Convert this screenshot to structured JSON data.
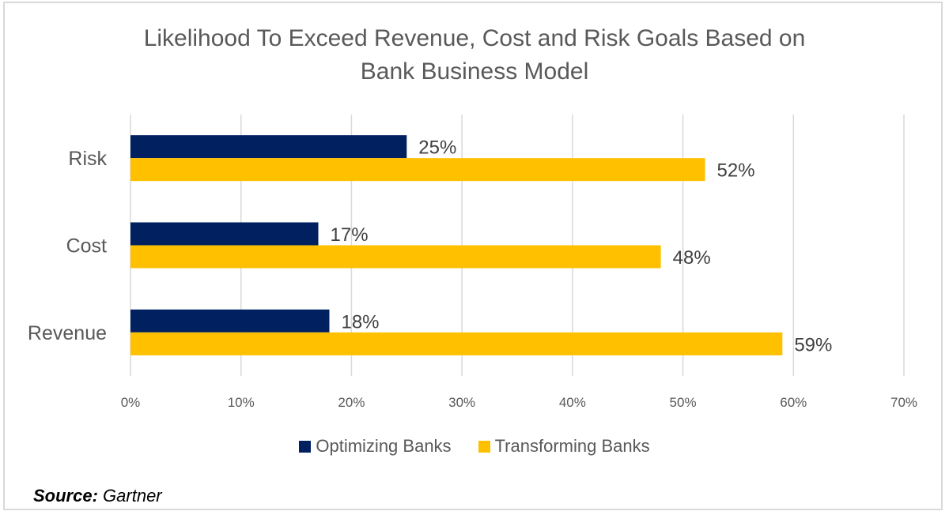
{
  "chart_data": {
    "type": "bar",
    "orientation": "horizontal",
    "title_lines": [
      "Likelihood To Exceed Revenue, Cost and Risk Goals Based on",
      "Bank Business Model"
    ],
    "categories": [
      "Risk",
      "Cost",
      "Revenue"
    ],
    "series": [
      {
        "name": "Optimizing Banks",
        "color": "#002060",
        "values": [
          25,
          17,
          18
        ]
      },
      {
        "name": "Transforming Banks",
        "color": "#FFC000",
        "values": [
          52,
          48,
          59
        ]
      }
    ],
    "xlim": [
      0,
      70
    ],
    "xticks": [
      0,
      10,
      20,
      30,
      40,
      50,
      60,
      70
    ],
    "tick_format": "%",
    "grid": true,
    "legend_position": "bottom",
    "xlabel": "",
    "ylabel": ""
  },
  "source": {
    "label": "Source:",
    "value": "Gartner"
  }
}
